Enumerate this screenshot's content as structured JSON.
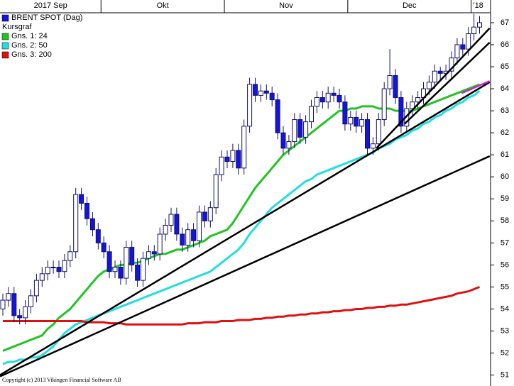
{
  "chart_data": {
    "type": "candlestick",
    "categories": [
      "2017 Sep",
      null,
      null,
      null,
      null,
      null,
      null,
      null,
      null,
      null,
      null,
      null,
      null,
      null,
      null,
      null,
      null,
      null,
      "Okt",
      null,
      null,
      null,
      null,
      null,
      null,
      null,
      null,
      null,
      null,
      null,
      null,
      null,
      null,
      null,
      null,
      null,
      null,
      null,
      null,
      null,
      "Nov",
      null,
      null,
      null,
      null,
      null,
      null,
      null,
      null,
      null,
      null,
      null,
      null,
      null,
      null,
      null,
      null,
      null,
      null,
      null,
      null,
      null,
      "Dec",
      null,
      null,
      null,
      null,
      null,
      null,
      null,
      null,
      null,
      null,
      null,
      null,
      null,
      null,
      null,
      null,
      null,
      null,
      null,
      null,
      null,
      "'18",
      null
    ],
    "ylim": [
      50.6,
      67.45
    ],
    "yticks": [
      51,
      52,
      53,
      54,
      55,
      56,
      57,
      58,
      59,
      60,
      61,
      62,
      63,
      64,
      65,
      66,
      67
    ],
    "y_axis_side": "right",
    "legend": "top-left",
    "legend_note": "Kursgraf",
    "copyright": "Copyright (c) 2013 Vikingen Financial Software AB",
    "series": [
      {
        "name": "BRENT SPOT (Dag)",
        "type": "candlestick",
        "color": "#1414e0",
        "up_color": "#ffffff",
        "outline": "#10106a",
        "open": [
          54.0,
          54.4,
          54.7,
          53.7,
          53.6,
          54.1,
          54.6,
          55.3,
          55.6,
          55.9,
          55.9,
          55.7,
          56.2,
          56.6,
          59.2,
          58.8,
          58.1,
          57.6,
          57.0,
          56.6,
          55.7,
          55.9,
          55.4,
          56.8,
          56.0,
          55.3,
          56.3,
          56.6,
          56.5,
          57.4,
          57.8,
          58.3,
          57.4,
          56.9,
          57.6,
          57.1,
          58.4,
          58.0,
          58.6,
          60.1,
          60.9,
          60.7,
          61.2,
          60.4,
          62.3,
          64.2,
          63.7,
          63.9,
          63.8,
          63.5,
          62.0,
          61.3,
          61.6,
          62.6,
          61.8,
          62.5,
          63.2,
          63.6,
          63.4,
          63.8,
          63.7,
          63.4,
          62.4,
          62.7,
          62.3,
          62.6,
          61.3,
          61.5,
          62.6,
          64.0,
          64.6,
          63.6,
          62.3,
          63.1,
          63.4,
          63.6,
          64.0,
          64.3,
          64.8,
          64.7,
          64.8,
          65.4,
          66.0,
          65.8,
          66.5,
          66.8
        ],
        "high": [
          54.7,
          55.0,
          55.0,
          54.0,
          54.4,
          54.9,
          55.6,
          55.9,
          56.2,
          56.2,
          56.2,
          56.5,
          56.9,
          59.5,
          59.5,
          59.1,
          58.4,
          57.9,
          57.3,
          56.9,
          56.2,
          56.2,
          57.1,
          57.1,
          56.3,
          56.6,
          56.9,
          56.9,
          57.7,
          58.1,
          58.6,
          58.6,
          57.7,
          57.9,
          57.9,
          58.7,
          58.7,
          58.9,
          60.4,
          61.2,
          61.2,
          61.5,
          61.5,
          62.6,
          64.5,
          64.5,
          64.2,
          64.2,
          64.1,
          63.8,
          62.3,
          61.9,
          62.9,
          62.9,
          62.8,
          63.5,
          63.9,
          63.9,
          64.1,
          64.1,
          64.0,
          63.7,
          63.0,
          63.0,
          62.9,
          62.9,
          61.8,
          62.9,
          64.3,
          65.8,
          64.9,
          63.9,
          63.4,
          63.7,
          63.9,
          64.3,
          64.6,
          65.1,
          65.0,
          65.1,
          65.7,
          66.3,
          66.3,
          66.8,
          67.4,
          67.3
        ],
        "low": [
          53.7,
          54.1,
          53.4,
          53.3,
          53.3,
          53.8,
          54.3,
          55.0,
          55.3,
          55.6,
          55.4,
          55.4,
          55.9,
          56.3,
          58.5,
          57.8,
          57.3,
          56.7,
          56.3,
          55.4,
          55.4,
          55.1,
          55.1,
          55.7,
          55.0,
          55.0,
          56.0,
          56.2,
          56.2,
          57.1,
          57.5,
          57.1,
          56.6,
          56.6,
          56.8,
          56.8,
          57.7,
          57.7,
          58.3,
          59.8,
          60.4,
          60.4,
          60.1,
          60.1,
          62.0,
          63.4,
          63.4,
          63.5,
          63.2,
          61.7,
          61.0,
          61.0,
          61.3,
          61.5,
          61.5,
          62.2,
          62.9,
          63.1,
          63.1,
          63.4,
          63.1,
          62.1,
          62.1,
          62.0,
          62.0,
          61.0,
          61.0,
          61.2,
          62.3,
          63.7,
          63.3,
          62.0,
          62.0,
          62.8,
          63.1,
          63.3,
          63.7,
          64.0,
          64.4,
          64.4,
          64.5,
          65.1,
          65.5,
          65.5,
          66.2,
          66.5
        ],
        "close": [
          54.4,
          54.7,
          53.7,
          53.6,
          54.1,
          54.6,
          55.3,
          55.6,
          55.9,
          55.9,
          55.7,
          56.2,
          56.6,
          59.2,
          58.8,
          58.1,
          57.6,
          57.0,
          56.6,
          55.7,
          55.9,
          55.4,
          56.8,
          56.0,
          55.3,
          56.3,
          56.6,
          56.5,
          57.4,
          57.8,
          58.3,
          57.4,
          56.9,
          57.6,
          57.1,
          58.4,
          58.0,
          58.6,
          60.1,
          60.9,
          60.7,
          61.2,
          60.4,
          62.3,
          64.2,
          63.7,
          63.9,
          63.8,
          63.5,
          62.0,
          61.3,
          61.6,
          62.6,
          61.8,
          62.5,
          63.2,
          63.6,
          63.4,
          63.8,
          63.7,
          63.4,
          62.4,
          62.7,
          62.3,
          62.6,
          61.3,
          61.5,
          62.6,
          64.0,
          64.6,
          63.6,
          62.3,
          63.1,
          63.4,
          63.6,
          64.0,
          64.3,
          64.8,
          64.7,
          64.8,
          65.4,
          66.0,
          65.8,
          66.5,
          66.8,
          67.0
        ]
      },
      {
        "name": "Gns. 1: 24",
        "type": "line",
        "color": "#22c422",
        "values": [
          52.1,
          52.2,
          52.3,
          52.4,
          52.5,
          52.6,
          52.7,
          52.8,
          53.1,
          53.3,
          53.6,
          53.8,
          54.0,
          54.3,
          54.6,
          54.9,
          55.2,
          55.5,
          55.7,
          55.8,
          55.9,
          56.0,
          56.0,
          56.1,
          56.1,
          56.2,
          56.3,
          56.4,
          56.5,
          56.5,
          56.6,
          56.7,
          56.7,
          56.8,
          56.9,
          57.0,
          57.1,
          57.3,
          57.4,
          57.5,
          57.6,
          57.9,
          58.3,
          58.7,
          59.1,
          59.5,
          59.8,
          60.1,
          60.4,
          60.7,
          61.0,
          61.2,
          61.4,
          61.6,
          61.8,
          62.0,
          62.2,
          62.4,
          62.6,
          62.8,
          63.0,
          63.0,
          63.1,
          63.1,
          63.2,
          63.2,
          63.2,
          63.1,
          63.1,
          63.1,
          63.0,
          63.0,
          63.0,
          63.0,
          63.1,
          63.2,
          63.3,
          63.4,
          63.5,
          63.6,
          63.7,
          63.8,
          63.9,
          64.0,
          64.1,
          64.2
        ]
      },
      {
        "name": "Gns. 2: 50",
        "type": "line",
        "color": "#22dede",
        "values": [
          51.5,
          51.6,
          51.6,
          51.7,
          51.7,
          51.8,
          51.8,
          51.9,
          52.1,
          52.3,
          52.6,
          52.9,
          53.1,
          53.3,
          53.4,
          53.5,
          53.6,
          53.7,
          53.8,
          53.9,
          54.0,
          54.1,
          54.2,
          54.3,
          54.4,
          54.5,
          54.6,
          54.7,
          54.8,
          54.9,
          55.0,
          55.1,
          55.2,
          55.3,
          55.4,
          55.5,
          55.6,
          55.7,
          55.9,
          56.1,
          56.3,
          56.5,
          56.7,
          57.0,
          57.4,
          57.7,
          58.0,
          58.3,
          58.6,
          58.8,
          59.0,
          59.2,
          59.4,
          59.6,
          59.8,
          59.9,
          60.1,
          60.2,
          60.3,
          60.4,
          60.5,
          60.6,
          60.7,
          60.8,
          60.9,
          61.0,
          61.1,
          61.3,
          61.4,
          61.5,
          61.7,
          61.8,
          61.9,
          62.1,
          62.2,
          62.4,
          62.5,
          62.7,
          62.8,
          63.0,
          63.1,
          63.3,
          63.4,
          63.6,
          63.7,
          63.9
        ]
      },
      {
        "name": "Gns. 3: 200",
        "type": "line",
        "color": "#e01010",
        "values": [
          53.45,
          53.45,
          53.45,
          53.45,
          53.45,
          53.45,
          53.45,
          53.45,
          53.45,
          53.45,
          53.45,
          53.45,
          53.45,
          53.45,
          53.45,
          53.4,
          53.4,
          53.4,
          53.4,
          53.35,
          53.35,
          53.35,
          53.3,
          53.3,
          53.3,
          53.3,
          53.3,
          53.3,
          53.3,
          53.3,
          53.3,
          53.3,
          53.3,
          53.35,
          53.35,
          53.35,
          53.4,
          53.4,
          53.4,
          53.45,
          53.45,
          53.45,
          53.5,
          53.5,
          53.5,
          53.55,
          53.55,
          53.6,
          53.6,
          53.65,
          53.65,
          53.7,
          53.7,
          53.75,
          53.75,
          53.8,
          53.8,
          53.85,
          53.85,
          53.9,
          53.9,
          53.95,
          53.95,
          54.0,
          54.0,
          54.05,
          54.05,
          54.1,
          54.1,
          54.15,
          54.15,
          54.2,
          54.2,
          54.25,
          54.3,
          54.35,
          54.4,
          54.45,
          54.5,
          54.55,
          54.6,
          54.7,
          54.75,
          54.8,
          54.9,
          55.0
        ]
      }
    ],
    "trendlines": [
      {
        "x": [
          -0.5,
          86.8
        ],
        "y": [
          51.0,
          64.3
        ],
        "color": "#000000"
      },
      {
        "x": [
          -0.5,
          86.8
        ],
        "y": [
          50.94,
          60.94
        ],
        "color": "#000000"
      },
      {
        "x": [
          66.6,
          86.8
        ],
        "y": [
          61.3,
          66.75
        ],
        "color": "#000000"
      },
      {
        "x": [
          71.6,
          86.8
        ],
        "y": [
          62.4,
          66.1
        ],
        "color": "#000000"
      },
      {
        "x": [
          81.8,
          86.8
        ],
        "y": [
          63.8,
          64.35
        ],
        "color": "#d020d0"
      }
    ]
  }
}
